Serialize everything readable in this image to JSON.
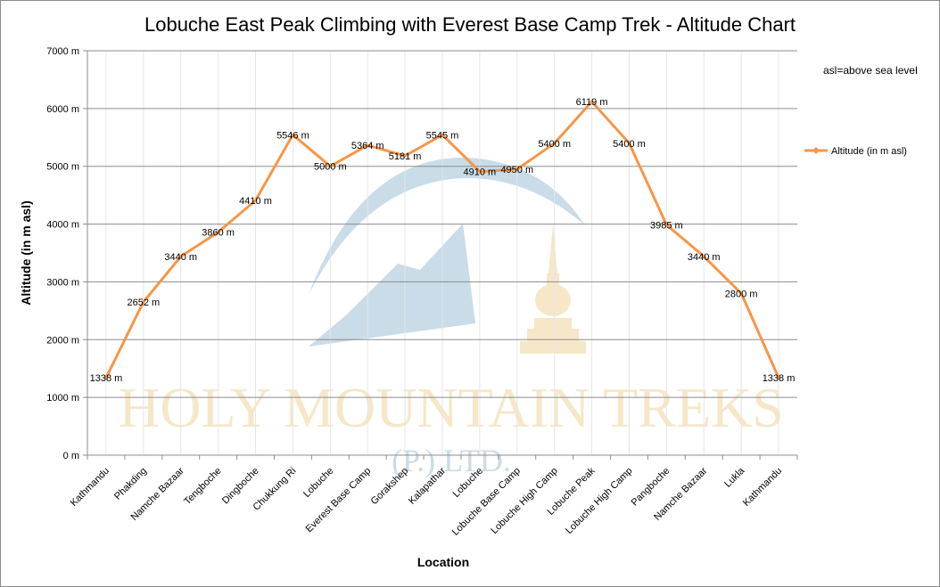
{
  "chart_data": {
    "type": "line",
    "title": "Lobuche East Peak Climbing with Everest Base Camp Trek - Altitude Chart",
    "xlabel": "Location",
    "ylabel": "Altitude (in m asl)",
    "ylim": [
      0,
      7000
    ],
    "y_ticks": [
      "0 m",
      "1000 m",
      "2000 m",
      "3000 m",
      "4000 m",
      "5000 m",
      "6000 m",
      "7000 m"
    ],
    "categories": [
      "Kathmandu",
      "Phakding",
      "Namche Bazaar",
      "Tengboche",
      "Dingboche",
      "Chukkung Ri",
      "Lobuche",
      "Everest Base Camp",
      "Gorakshep",
      "Kalapathar",
      "Lobuche",
      "Lobuche Base Camp",
      "Lobuche High Camp",
      "Lobuche Peak",
      "Lobuche High Camp",
      "Pangboche",
      "Namche Bazaar",
      "Lukla",
      "Kathmandu"
    ],
    "series": [
      {
        "name": "Altitude (in  m asl)",
        "values": [
          1338,
          2652,
          3440,
          3860,
          4410,
          5546,
          5000,
          5364,
          5181,
          5545,
          4910,
          4950,
          5400,
          6119,
          5400,
          3985,
          3440,
          2800,
          1338
        ],
        "labels": [
          "1338 m",
          "2652 m",
          "3440 m",
          "3860 m",
          "4410 m",
          "5546 m",
          "5000 m",
          "5364 m",
          "5181 m",
          "5545 m",
          "4910 m",
          "4950 m",
          "5400 m",
          "6119 m",
          "5400 m",
          "3985 m",
          "3440 m",
          "2800 m",
          "1338 m"
        ],
        "color": "#f79646"
      }
    ],
    "grid": true,
    "legend_position": "right",
    "annotation": "asl=above sea level"
  },
  "watermark": {
    "line1": "HOLY MOUNTAIN TREKS",
    "line2": "(P.) LTD.",
    "blue": "#c9dce8",
    "gold": "#f6e7c8"
  },
  "colors": {
    "gridline": "#8c8c8c",
    "axis": "#8c8c8c",
    "vertical_grid": "#e6e6e6"
  }
}
